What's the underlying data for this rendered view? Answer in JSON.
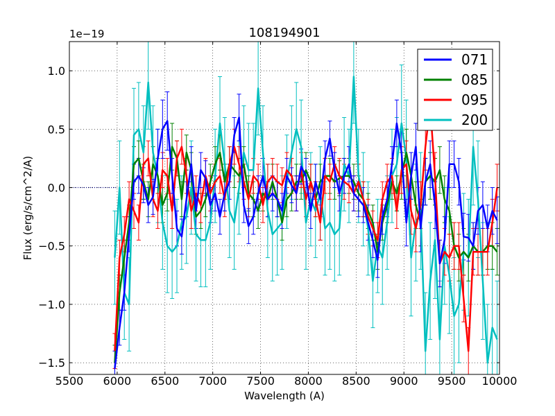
{
  "chart_data": {
    "type": "line",
    "title": "108194901",
    "xlabel": "Wavelength (A)",
    "ylabel": "Flux (erg/s/cm^2/A)",
    "y_offset_label": "1e−19",
    "xlim": [
      5500,
      10000
    ],
    "ylim": [
      -1.6,
      1.25
    ],
    "x_ticks": [
      5500,
      6000,
      6500,
      7000,
      7500,
      8000,
      8500,
      9000,
      9500,
      10000
    ],
    "y_ticks": [
      -1.5,
      -1.0,
      -0.5,
      0.0,
      0.5,
      1.0
    ],
    "y_tick_labels": [
      "−1.5",
      "−1.0",
      "−0.5",
      "0.0",
      "0.5",
      "1.0"
    ],
    "grid": true,
    "legend_position": "top-right",
    "zero_line": {
      "x": [
        5500,
        6000
      ],
      "y": 0.0,
      "style": "dotted"
    },
    "series": [
      {
        "name": "071",
        "color": "#0000ff",
        "x": [
          5975,
          6025,
          6075,
          6125,
          6175,
          6225,
          6275,
          6325,
          6375,
          6425,
          6475,
          6525,
          6575,
          6625,
          6675,
          6725,
          6775,
          6825,
          6875,
          6925,
          6975,
          7025,
          7075,
          7125,
          7175,
          7225,
          7275,
          7325,
          7375,
          7425,
          7475,
          7525,
          7575,
          7625,
          7675,
          7725,
          7775,
          7825,
          7875,
          7925,
          7975,
          8025,
          8075,
          8125,
          8175,
          8225,
          8275,
          8325,
          8375,
          8425,
          8475,
          8525,
          8575,
          8625,
          8675,
          8725,
          8775,
          8825,
          8875,
          8925,
          8975,
          9025,
          9075,
          9125,
          9175,
          9225,
          9275,
          9325,
          9375,
          9425,
          9475,
          9525,
          9575,
          9625,
          9675,
          9725,
          9775,
          9825,
          9875,
          9925,
          9975
        ],
        "y": [
          -1.55,
          -1.2,
          -0.9,
          -0.4,
          0.05,
          0.1,
          0.02,
          -0.15,
          -0.08,
          0.25,
          0.5,
          0.57,
          0.1,
          -0.35,
          -0.42,
          -0.1,
          0.2,
          -0.2,
          0.15,
          0.08,
          -0.15,
          -0.05,
          -0.25,
          -0.05,
          0.05,
          0.45,
          0.6,
          -0.15,
          -0.33,
          -0.25,
          -0.05,
          0.1,
          -0.1,
          -0.05,
          -0.1,
          -0.2,
          0.1,
          0.02,
          -0.05,
          0.18,
          0.1,
          -0.2,
          0.05,
          -0.1,
          0.25,
          0.42,
          0.15,
          -0.05,
          0.1,
          0.2,
          -0.05,
          -0.1,
          -0.15,
          -0.3,
          -0.45,
          -0.62,
          -0.25,
          -0.1,
          0.2,
          0.55,
          0.3,
          -0.3,
          0.1,
          0.35,
          -0.35,
          0.05,
          0.2,
          -0.15,
          -0.65,
          -0.45,
          0.2,
          0.2,
          0.05,
          -0.42,
          -0.43,
          -0.5,
          -0.2,
          -0.15,
          -0.35,
          -0.2,
          -0.28
        ],
        "yerr": [
          0.15,
          0.15,
          0.15,
          0.15,
          0.15,
          0.15,
          0.15,
          0.15,
          0.15,
          0.25,
          0.25,
          0.25,
          0.15,
          0.15,
          0.15,
          0.15,
          0.15,
          0.15,
          0.15,
          0.15,
          0.15,
          0.15,
          0.15,
          0.15,
          0.15,
          0.15,
          0.2,
          0.15,
          0.15,
          0.15,
          0.15,
          0.15,
          0.15,
          0.15,
          0.15,
          0.15,
          0.15,
          0.15,
          0.15,
          0.15,
          0.15,
          0.15,
          0.15,
          0.15,
          0.15,
          0.15,
          0.15,
          0.15,
          0.15,
          0.15,
          0.15,
          0.15,
          0.15,
          0.15,
          0.15,
          0.15,
          0.15,
          0.15,
          0.15,
          0.2,
          0.2,
          0.2,
          0.2,
          0.2,
          0.2,
          0.2,
          0.2,
          0.2,
          0.2,
          0.2,
          0.2,
          0.2,
          0.2,
          0.2,
          0.2,
          0.2,
          0.2,
          0.2,
          0.2,
          0.2,
          0.2
        ]
      },
      {
        "name": "085",
        "color": "#008000",
        "x": [
          5975,
          6025,
          6075,
          6125,
          6175,
          6225,
          6275,
          6325,
          6375,
          6425,
          6475,
          6525,
          6575,
          6625,
          6675,
          6725,
          6775,
          6825,
          6875,
          6925,
          6975,
          7025,
          7075,
          7125,
          7175,
          7225,
          7275,
          7325,
          7375,
          7425,
          7475,
          7525,
          7575,
          7625,
          7675,
          7725,
          7775,
          7825,
          7875,
          7925,
          7975,
          8025,
          8075,
          8125,
          8175,
          8225,
          8275,
          8325,
          8375,
          8425,
          8475,
          8525,
          8575,
          8625,
          8675,
          8725,
          8775,
          8825,
          8875,
          8925,
          8975,
          9025,
          9075,
          9125,
          9175,
          9225,
          9275,
          9325,
          9375,
          9425,
          9475,
          9525,
          9575,
          9625,
          9675,
          9725,
          9775,
          9825,
          9875,
          9925,
          9975
        ],
        "y": [
          -1.5,
          -0.9,
          -0.6,
          -0.3,
          0.2,
          0.25,
          0.05,
          -0.1,
          0.2,
          0.1,
          -0.15,
          -0.05,
          0.35,
          0.25,
          -0.1,
          0.3,
          0.15,
          -0.25,
          -0.2,
          -0.1,
          0.05,
          0.2,
          0.3,
          0.05,
          0.2,
          0.15,
          0.1,
          0.2,
          -0.05,
          -0.1,
          -0.2,
          -0.05,
          -0.1,
          0.05,
          -0.1,
          -0.3,
          -0.1,
          -0.05,
          0.05,
          0.05,
          0.15,
          0.05,
          -0.1,
          0.05,
          0.1,
          0.1,
          0.05,
          0.08,
          0.1,
          0.1,
          0.05,
          -0.05,
          -0.1,
          -0.2,
          -0.3,
          -0.55,
          -0.3,
          -0.15,
          0.05,
          -0.05,
          0.1,
          0.3,
          0.1,
          -0.15,
          -0.3,
          0.05,
          0.1,
          0.05,
          0.15,
          -0.1,
          -0.2,
          -0.5,
          -0.6,
          -0.55,
          -0.6,
          -0.5,
          -0.55,
          -0.55,
          -0.5,
          -0.5,
          -0.55
        ],
        "yerr": [
          0.15,
          0.15,
          0.15,
          0.15,
          0.15,
          0.15,
          0.15,
          0.15,
          0.15,
          0.15,
          0.15,
          0.15,
          0.2,
          0.15,
          0.15,
          0.15,
          0.15,
          0.15,
          0.15,
          0.15,
          0.15,
          0.15,
          0.15,
          0.15,
          0.15,
          0.15,
          0.15,
          0.15,
          0.15,
          0.15,
          0.15,
          0.15,
          0.15,
          0.15,
          0.15,
          0.15,
          0.15,
          0.15,
          0.15,
          0.15,
          0.15,
          0.15,
          0.15,
          0.15,
          0.15,
          0.15,
          0.15,
          0.15,
          0.15,
          0.15,
          0.15,
          0.15,
          0.15,
          0.15,
          0.15,
          0.15,
          0.15,
          0.15,
          0.15,
          0.15,
          0.2,
          0.2,
          0.2,
          0.2,
          0.2,
          0.2,
          0.2,
          0.2,
          0.2,
          0.2,
          0.2,
          0.2,
          0.2,
          0.2,
          0.2,
          0.2,
          0.2,
          0.2,
          0.2,
          0.2,
          0.2
        ]
      },
      {
        "name": "095",
        "color": "#ff0000",
        "x": [
          5975,
          6025,
          6075,
          6125,
          6175,
          6225,
          6275,
          6325,
          6375,
          6425,
          6475,
          6525,
          6575,
          6625,
          6675,
          6725,
          6775,
          6825,
          6875,
          6925,
          6975,
          7025,
          7075,
          7125,
          7175,
          7225,
          7275,
          7325,
          7375,
          7425,
          7475,
          7525,
          7575,
          7625,
          7675,
          7725,
          7775,
          7825,
          7875,
          7925,
          7975,
          8025,
          8075,
          8125,
          8175,
          8225,
          8275,
          8325,
          8375,
          8425,
          8475,
          8525,
          8575,
          8625,
          8675,
          8725,
          8775,
          8825,
          8875,
          8925,
          8975,
          9025,
          9075,
          9125,
          9175,
          9225,
          9275,
          9325,
          9375,
          9425,
          9475,
          9525,
          9575,
          9625,
          9675,
          9725,
          9775,
          9825,
          9875,
          9925,
          9975
        ],
        "y": [
          -1.4,
          -0.6,
          -0.4,
          -0.1,
          -0.2,
          -0.3,
          0.2,
          0.25,
          -0.1,
          -0.2,
          0.15,
          0.1,
          -0.2,
          0.25,
          0.35,
          0.1,
          -0.2,
          -0.05,
          -0.15,
          0.1,
          -0.05,
          0.05,
          0.1,
          -0.1,
          0.2,
          0.35,
          0.2,
          0.05,
          -0.1,
          0.1,
          0.05,
          -0.15,
          0.05,
          0.1,
          0.05,
          0.02,
          0.15,
          0.1,
          -0.05,
          0.15,
          -0.1,
          0.05,
          -0.1,
          -0.3,
          0.1,
          0.05,
          0.2,
          0.1,
          0.05,
          0.02,
          -0.05,
          0.05,
          -0.1,
          -0.25,
          -0.35,
          -0.45,
          -0.1,
          0.05,
          0.1,
          -0.2,
          0.15,
          0.2,
          -0.2,
          -0.35,
          -0.15,
          0.35,
          0.7,
          0.1,
          -0.65,
          -0.55,
          -0.6,
          -0.5,
          -0.5,
          -0.95,
          -1.4,
          -0.55,
          -0.55,
          -0.55,
          -0.55,
          -0.3,
          0.0
        ],
        "yerr": [
          0.15,
          0.15,
          0.15,
          0.15,
          0.15,
          0.15,
          0.15,
          0.15,
          0.15,
          0.15,
          0.15,
          0.15,
          0.15,
          0.15,
          0.15,
          0.15,
          0.15,
          0.15,
          0.15,
          0.15,
          0.15,
          0.15,
          0.15,
          0.15,
          0.15,
          0.15,
          0.15,
          0.15,
          0.15,
          0.15,
          0.15,
          0.15,
          0.15,
          0.15,
          0.15,
          0.15,
          0.15,
          0.15,
          0.15,
          0.15,
          0.15,
          0.15,
          0.15,
          0.15,
          0.15,
          0.15,
          0.15,
          0.15,
          0.15,
          0.15,
          0.15,
          0.15,
          0.15,
          0.15,
          0.15,
          0.15,
          0.15,
          0.15,
          0.15,
          0.15,
          0.2,
          0.2,
          0.2,
          0.2,
          0.2,
          0.2,
          0.2,
          0.2,
          0.2,
          0.2,
          0.2,
          0.2,
          0.2,
          0.2,
          0.2,
          0.2,
          0.2,
          0.2,
          0.2,
          0.2,
          0.2
        ]
      },
      {
        "name": "200",
        "color": "#00bfbf",
        "x": [
          5975,
          6025,
          6075,
          6125,
          6175,
          6225,
          6275,
          6325,
          6375,
          6425,
          6475,
          6525,
          6575,
          6625,
          6675,
          6725,
          6775,
          6825,
          6875,
          6925,
          6975,
          7025,
          7075,
          7125,
          7175,
          7225,
          7275,
          7325,
          7375,
          7425,
          7475,
          7525,
          7575,
          7625,
          7675,
          7725,
          7775,
          7825,
          7875,
          7925,
          7975,
          8025,
          8075,
          8125,
          8175,
          8225,
          8275,
          8325,
          8375,
          8425,
          8475,
          8525,
          8575,
          8625,
          8675,
          8725,
          8775,
          8825,
          8875,
          8925,
          8975,
          9025,
          9075,
          9125,
          9175,
          9225,
          9275,
          9325,
          9375,
          9425,
          9475,
          9525,
          9575,
          9625,
          9675,
          9725,
          9775,
          9825,
          9875,
          9925,
          9975
        ],
        "y": [
          -0.6,
          0.0,
          -0.9,
          -1.0,
          0.45,
          0.5,
          0.3,
          0.9,
          0.3,
          0.1,
          -0.3,
          -0.5,
          -0.55,
          -0.5,
          -0.3,
          -0.25,
          0.0,
          -0.4,
          -0.45,
          -0.45,
          -0.3,
          0.1,
          0.55,
          0.2,
          -0.2,
          -0.3,
          0.0,
          0.3,
          0.15,
          0.15,
          0.85,
          0.3,
          -0.2,
          -0.4,
          -0.35,
          -0.3,
          0.05,
          0.3,
          0.5,
          0.35,
          -0.3,
          -0.1,
          -0.2,
          -0.05,
          -0.35,
          -0.3,
          -0.4,
          -0.35,
          0.2,
          0.1,
          0.95,
          0.1,
          -0.1,
          -0.35,
          -0.8,
          -0.5,
          -0.6,
          -0.3,
          0.1,
          0.2,
          0.55,
          0.25,
          -0.6,
          -0.3,
          -0.2,
          -1.4,
          -0.8,
          -0.45,
          -1.3,
          -0.5,
          -0.75,
          -1.1,
          -1.0,
          -0.55,
          -0.6,
          0.35,
          -0.1,
          -0.8,
          -1.5,
          -1.2,
          -1.3
        ],
        "yerr": [
          0.4,
          0.4,
          0.4,
          0.4,
          0.4,
          0.4,
          0.4,
          0.4,
          0.4,
          0.4,
          0.4,
          0.4,
          0.4,
          0.4,
          0.4,
          0.4,
          0.4,
          0.4,
          0.4,
          0.4,
          0.4,
          0.4,
          0.4,
          0.4,
          0.4,
          0.4,
          0.4,
          0.4,
          0.4,
          0.4,
          0.4,
          0.4,
          0.4,
          0.4,
          0.4,
          0.4,
          0.4,
          0.4,
          0.4,
          0.4,
          0.4,
          0.4,
          0.4,
          0.4,
          0.4,
          0.4,
          0.4,
          0.4,
          0.4,
          0.4,
          0.4,
          0.4,
          0.4,
          0.4,
          0.4,
          0.4,
          0.4,
          0.4,
          0.4,
          0.4,
          0.5,
          0.5,
          0.5,
          0.5,
          0.5,
          0.5,
          0.5,
          0.5,
          0.5,
          0.5,
          0.5,
          0.5,
          0.5,
          0.5,
          0.5,
          0.5,
          0.5,
          0.5,
          0.5,
          0.5,
          0.5
        ]
      }
    ]
  }
}
